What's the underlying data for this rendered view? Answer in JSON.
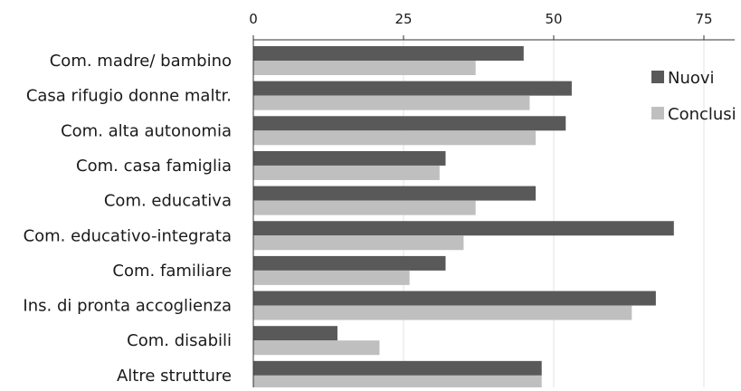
{
  "chart_data": {
    "type": "bar",
    "orientation": "horizontal",
    "categories": [
      "Com. madre/ bambino",
      "Casa rifugio donne maltr.",
      "Com. alta autonomia",
      "Com. casa famiglia",
      "Com. educativa",
      "Com. educativo-integrata",
      "Com. familiare",
      "Ins. di pronta accoglienza",
      "Com. disabili",
      "Altre strutture"
    ],
    "series": [
      {
        "name": "Nuovi",
        "color": "#595959",
        "values": [
          45,
          53,
          52,
          32,
          47,
          70,
          32,
          67,
          14,
          48
        ]
      },
      {
        "name": "Conclusi",
        "color": "#bfbfbf",
        "values": [
          37,
          46,
          47,
          31,
          37,
          35,
          26,
          63,
          21,
          48
        ]
      }
    ],
    "x_ticks": [
      "0",
      "25",
      "50",
      "75"
    ],
    "xlim": [
      0,
      80
    ],
    "title": "",
    "xlabel": "",
    "ylabel": "",
    "grid": "vertical",
    "legend_position": "right"
  }
}
